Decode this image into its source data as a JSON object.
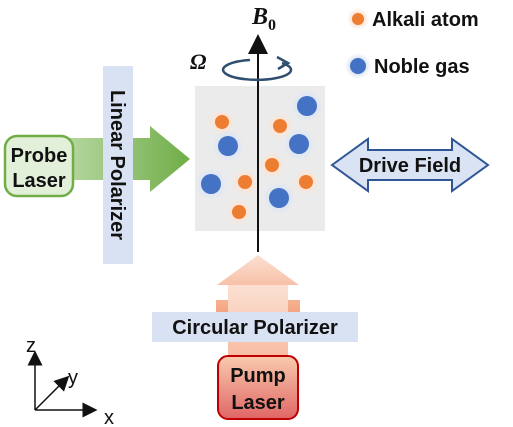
{
  "field_label": {
    "symbol": "B",
    "subscript": "0"
  },
  "rotation_label": "Ω",
  "legend": [
    {
      "label": "Alkali atom",
      "color": "#ED7D31"
    },
    {
      "label": "Noble gas",
      "color": "#4472C4"
    }
  ],
  "probe_laser": {
    "line1": "Probe",
    "line2": "Laser"
  },
  "linear_polarizer": "Linear Polarizer",
  "drive_field": "Drive Field",
  "circular_polarizer": "Circular Polarizer",
  "pump_laser": {
    "line1": "Pump",
    "line2": "Laser"
  },
  "axes": {
    "z": "z",
    "y": "y",
    "x": "x"
  },
  "colors": {
    "alkali": "#ED7D31",
    "noble": "#4472C4",
    "cell": "#EBEBEB",
    "polarizer_box": "#D9E2F3",
    "probe_box": "#E2F0D9",
    "probe_arrow": "#70AD47",
    "pump_arrow": "#F4B183",
    "pump_box": "#F08080",
    "drive_arrow": "#DAE3F3"
  }
}
